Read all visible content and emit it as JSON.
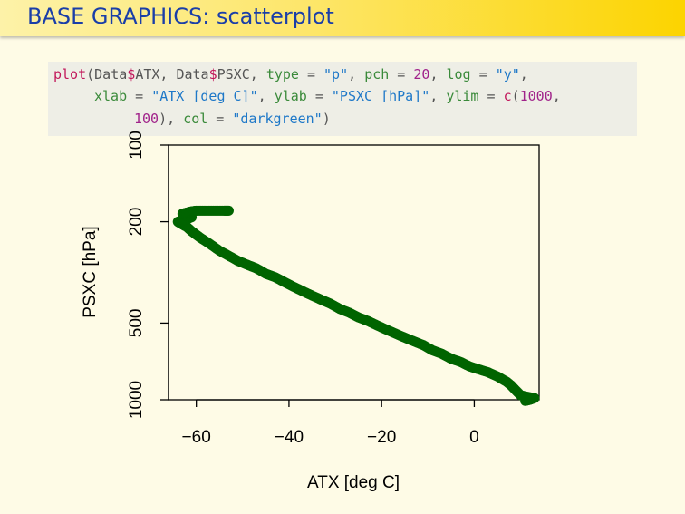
{
  "slide": {
    "title": "BASE GRAPHICS: scatterplot"
  },
  "code": {
    "line1": {
      "fn": "plot",
      "p1": "(Data",
      "d1": "$",
      "p2": "ATX, Data",
      "d2": "$",
      "p3": "PSXC, ",
      "a1": "type",
      "e1": " = ",
      "s1": "\"p\"",
      "c1": ", ",
      "a2": "pch",
      "e2": " = ",
      "n1": "20",
      "c2": ", ",
      "a3": "log",
      "e3": " = ",
      "s2": "\"y\"",
      "c3": ","
    },
    "line2": {
      "a4": "xlab",
      "e4": " = ",
      "s3": "\"ATX [deg C]\"",
      "c4": ", ",
      "a5": "ylab",
      "e5": " = ",
      "s4": "\"PSXC [hPa]\"",
      "c5": ", ",
      "a6": "ylim",
      "e6": " = ",
      "fn2": "c",
      "p4": "(",
      "n2": "1000",
      "c6": ","
    },
    "line3": {
      "n3": "100",
      "p5": "), ",
      "a7": "col",
      "e7": " = ",
      "s5": "\"darkgreen\"",
      "p6": ")"
    }
  },
  "chart_data": {
    "type": "scatter",
    "xlabel": "ATX [deg C]",
    "ylabel": "PSXC [hPa]",
    "xlim": [
      -66,
      14
    ],
    "ylim": [
      1000,
      100
    ],
    "log_y": true,
    "x_ticks": [
      -60,
      -40,
      -20,
      0
    ],
    "x_tick_labels": [
      "−60",
      "−40",
      "−20",
      "0"
    ],
    "y_ticks": [
      100,
      200,
      500,
      1000
    ],
    "y_tick_labels": [
      "100",
      "200",
      "500",
      "1000"
    ],
    "color": "#006400",
    "series": [
      {
        "x": [
          11,
          12,
          13,
          10,
          9,
          8,
          7,
          5,
          3,
          1,
          -1,
          -3,
          -5,
          -7,
          -9,
          -11,
          -13,
          -15,
          -17,
          -19,
          -21,
          -23,
          -25,
          -27,
          -29,
          -31,
          -33,
          -35,
          -37,
          -39,
          -41,
          -43,
          -45,
          -47,
          -49,
          -51,
          -53,
          -55,
          -57,
          -59,
          -60,
          -61,
          -62,
          -63,
          -64,
          -63,
          -62,
          -61,
          -62,
          -63,
          -62,
          -61,
          -60,
          -58,
          -56,
          -54,
          -53
        ],
        "y": [
          1010,
          1000,
          985,
          960,
          920,
          880,
          850,
          810,
          780,
          760,
          740,
          710,
          690,
          660,
          640,
          610,
          590,
          570,
          550,
          530,
          510,
          490,
          475,
          455,
          440,
          420,
          405,
          390,
          375,
          360,
          345,
          330,
          320,
          305,
          295,
          285,
          272,
          260,
          245,
          232,
          225,
          218,
          210,
          205,
          200,
          198,
          195,
          192,
          190,
          186,
          184,
          182,
          181,
          181,
          181,
          181,
          181
        ]
      }
    ]
  }
}
